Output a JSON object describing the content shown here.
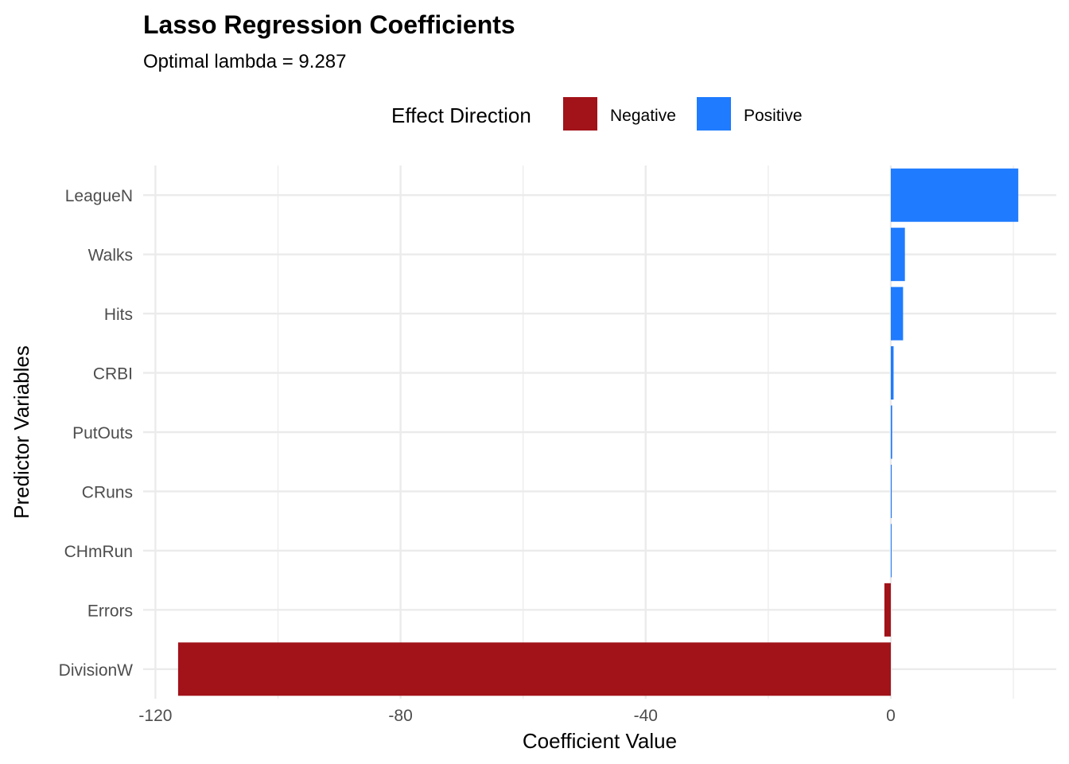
{
  "chart_data": {
    "type": "bar",
    "orientation": "horizontal",
    "title": "Lasso Regression Coefficients",
    "subtitle": "Optimal lambda = 9.287",
    "xlabel": "Coefficient Value",
    "ylabel": "Predictor Variables",
    "categories": [
      "LeagueN",
      "Walks",
      "Hits",
      "CRBI",
      "PutOuts",
      "CRuns",
      "CHmRun",
      "Errors",
      "DivisionW"
    ],
    "values": [
      20.8,
      2.3,
      2.0,
      0.45,
      0.22,
      0.15,
      0.05,
      -1.05,
      -116.3
    ],
    "xlim": [
      -122,
      27
    ],
    "xticks": [
      -120,
      -80,
      -40,
      0
    ],
    "xtick_labels": [
      "-120",
      "-80",
      "-40",
      "0"
    ],
    "grid": true,
    "legend": {
      "title": "Effect Direction",
      "position": "top",
      "items": [
        {
          "label": "Negative",
          "color": "#A11219"
        },
        {
          "label": "Positive",
          "color": "#1F7BFF"
        }
      ]
    },
    "colors": {
      "negative": "#A11219",
      "positive": "#1F7BFF",
      "grid": "#EBEBEB",
      "tick_text": "#4D4D4D"
    }
  }
}
